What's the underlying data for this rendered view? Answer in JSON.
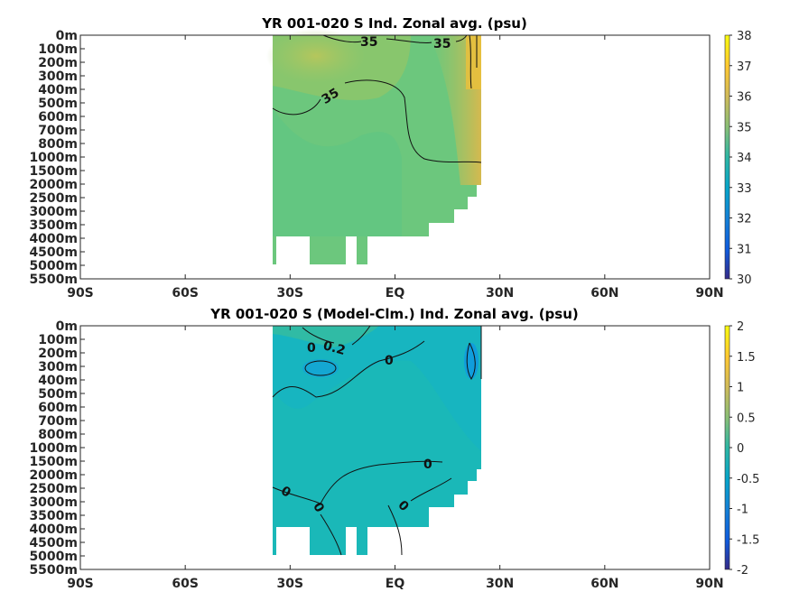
{
  "chart_data": [
    {
      "type": "heatmap",
      "title": "YR 001-020 S Ind. Zonal avg. (psu)",
      "x_ticks": [
        "90S",
        "60S",
        "30S",
        "EQ",
        "30N",
        "60N",
        "90N"
      ],
      "x_tick_values": [
        -90,
        -60,
        -30,
        0,
        30,
        60,
        90
      ],
      "y_ticks": [
        "0m",
        "100m",
        "200m",
        "300m",
        "400m",
        "500m",
        "600m",
        "700m",
        "800m",
        "1000m",
        "1500m",
        "2000m",
        "2500m",
        "3000m",
        "3500m",
        "4000m",
        "4500m",
        "5000m",
        "5500m"
      ],
      "colorbar_ticks": [
        "38",
        "37",
        "36",
        "35",
        "34",
        "33",
        "32",
        "31",
        "30"
      ],
      "colorbar_range": [
        30,
        38
      ],
      "colormap": "parula",
      "data_extent_lat": [
        -34,
        25
      ],
      "contour_labels": [
        "35",
        "35",
        "35"
      ],
      "regions": [
        {
          "lat": [
            -34,
            25
          ],
          "depth": "0m-4000m",
          "salinity": 34.6
        },
        {
          "lat": [
            -20,
            0
          ],
          "depth": "0m-300m",
          "salinity": 35.6
        },
        {
          "lat": [
            21,
            25
          ],
          "depth": "0m-500m",
          "salinity": 36.5
        }
      ]
    },
    {
      "type": "heatmap",
      "title": "YR 001-020 S (Model-Clm.) Ind. Zonal avg. (psu)",
      "x_ticks": [
        "90S",
        "60S",
        "30S",
        "EQ",
        "30N",
        "60N",
        "90N"
      ],
      "x_tick_values": [
        -90,
        -60,
        -30,
        0,
        30,
        60,
        90
      ],
      "y_ticks": [
        "0m",
        "100m",
        "200m",
        "300m",
        "400m",
        "500m",
        "600m",
        "700m",
        "800m",
        "1000m",
        "1500m",
        "2000m",
        "2500m",
        "3000m",
        "3500m",
        "4000m",
        "4500m",
        "5000m",
        "5500m"
      ],
      "colorbar_ticks": [
        "2",
        "1.5",
        "1",
        "0.5",
        "0",
        "-0.5",
        "-1",
        "-1.5",
        "-2"
      ],
      "colorbar_range": [
        -2,
        2
      ],
      "colormap": "parula",
      "data_extent_lat": [
        -34,
        25
      ],
      "contour_labels": [
        "0",
        "0.2",
        "0",
        "0",
        "0",
        "0",
        "0"
      ],
      "regions": [
        {
          "lat": [
            -34,
            25
          ],
          "depth": "0m-4000m",
          "anomaly": -0.1
        },
        {
          "lat": [
            -28,
            -20
          ],
          "depth": "200m-400m",
          "anomaly": -0.4
        },
        {
          "lat": [
            22,
            25
          ],
          "depth": "100m-400m",
          "anomaly": -0.5
        }
      ]
    }
  ]
}
